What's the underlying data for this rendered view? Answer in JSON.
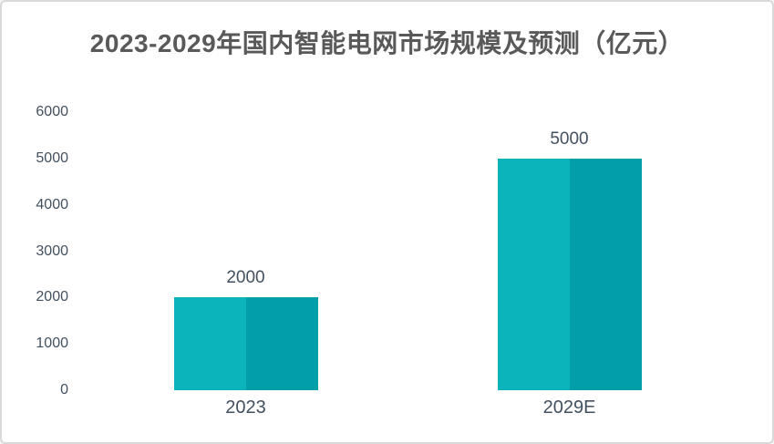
{
  "chart_data": {
    "type": "bar",
    "title": "2023-2029年国内智能电网市场规模及预测（亿元）",
    "categories": [
      "2023",
      "2029E"
    ],
    "values": [
      2000,
      5000
    ],
    "data_labels": [
      "2000",
      "5000"
    ],
    "yticks": [
      "6000",
      "5000",
      "4000",
      "3000",
      "2000",
      "1000",
      "0"
    ],
    "ylim": [
      0,
      6000
    ],
    "xlabel": "",
    "ylabel": "",
    "grid": false,
    "legend": "none",
    "colors": {
      "bar_left_half": "#0ab4ba",
      "bar_right_half": "#039fa9",
      "title_text": "#595959",
      "axis_text": "#42505f",
      "border": "#d9d9d9",
      "background": "#ffffff"
    }
  }
}
